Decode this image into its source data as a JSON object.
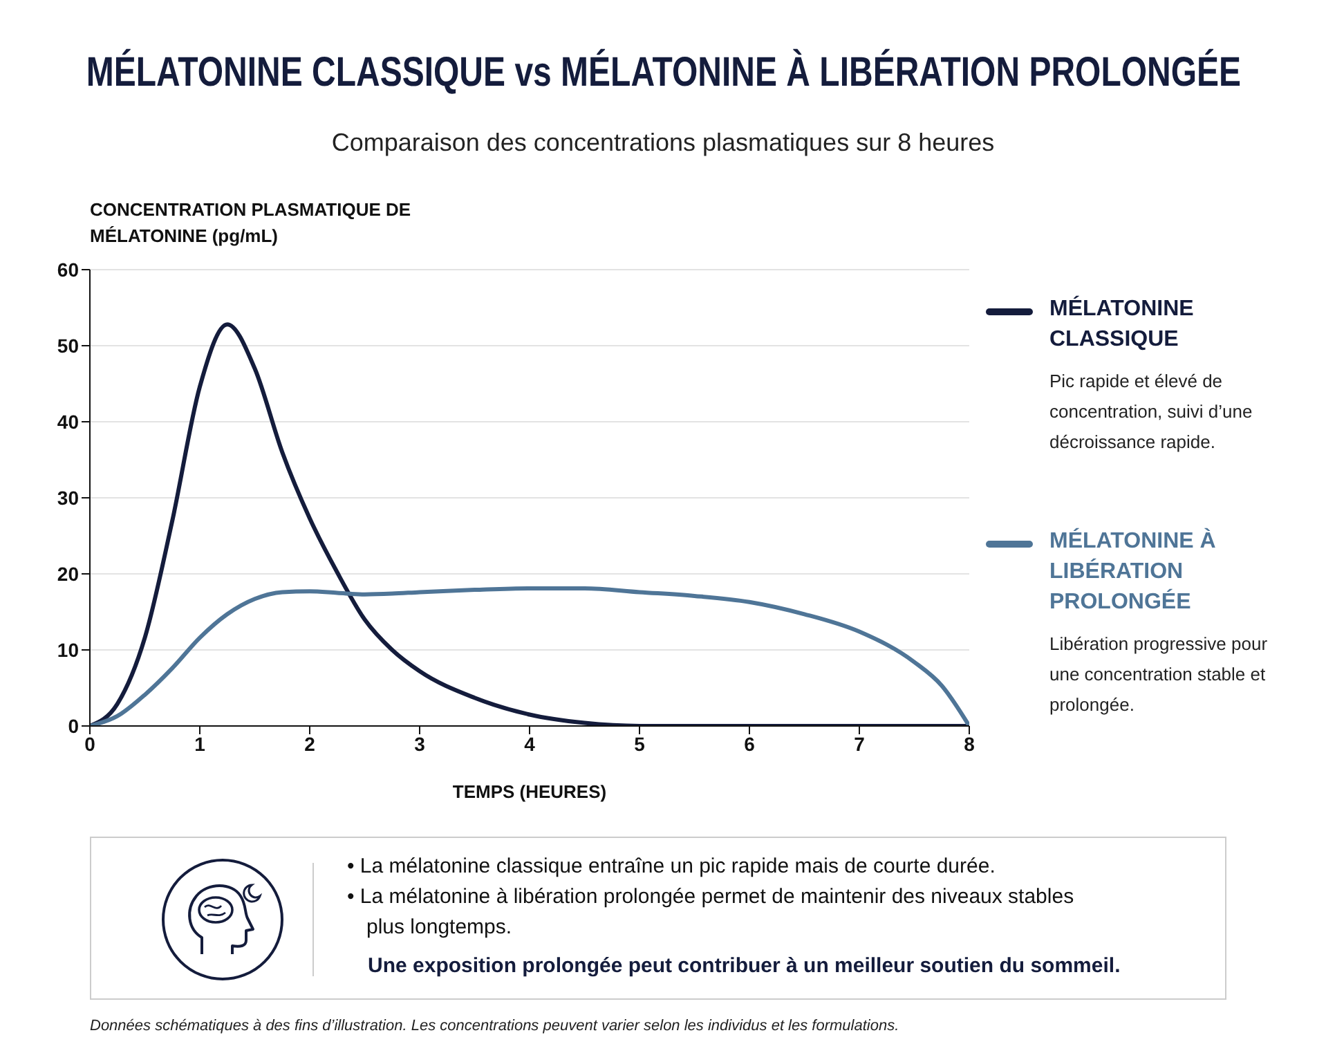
{
  "chart_data": {
    "type": "line",
    "title": "MÉLATONINE CLASSIQUE vs MÉLATONINE À LIBÉRATION PROLONGÉE",
    "subtitle": "Comparaison des concentrations plasmatiques sur 8 heures",
    "xlabel": "TEMPS (HEURES)",
    "ylabel": "CONCENTRATION PLASMATIQUE DE MÉLATONINE (pg/mL)",
    "x": [
      0,
      0.25,
      0.5,
      0.75,
      1,
      1.25,
      1.5,
      1.75,
      2,
      2.25,
      2.5,
      2.75,
      3,
      3.5,
      4,
      4.5,
      5,
      5.5,
      6,
      6.5,
      7,
      7.5,
      7.75,
      8
    ],
    "series": [
      {
        "name": "MÉLATONINE CLASSIQUE",
        "color": "#141c3c",
        "values": [
          0,
          2.9,
          11.6,
          27,
          44.6,
          52.8,
          47,
          36,
          27.3,
          20.2,
          14,
          10,
          7.2,
          3.7,
          1.5,
          0.4,
          0,
          0,
          0,
          0,
          0,
          0,
          0,
          0
        ]
      },
      {
        "name": "MÉLATONINE À LIBÉRATION PROLONGÉE",
        "color": "#4f7597",
        "values": [
          0,
          1.3,
          4.1,
          7.6,
          11.6,
          14.7,
          16.7,
          17.6,
          17.7,
          17.5,
          17.3,
          17.4,
          17.6,
          17.9,
          18.1,
          18.1,
          17.6,
          17.1,
          16.3,
          14.7,
          12.4,
          8.4,
          5.3,
          0
        ]
      }
    ],
    "xlim": [
      0,
      8
    ],
    "xticks": [
      0,
      1,
      2,
      3,
      4,
      5,
      6,
      7,
      8
    ],
    "ylim": [
      0,
      60
    ],
    "yticks": [
      0,
      10,
      20,
      30,
      40,
      50,
      60
    ],
    "grid": "y",
    "legend": "right",
    "marker": "none",
    "line_style": "solid",
    "annotations": [
      "Pic rapide et élevé de concentration, suivi d’une décroissance rapide.",
      "Libération progressive pour une concentration stable et prolongée.",
      "• La mélatonine classique entraîne un pic rapide mais de courte durée.",
      "• La mélatonine à libération prolongée permet de maintenir des niveaux stables plus longtemps.",
      "Une exposition prolongée peut contribuer à un meilleur soutien du sommeil.",
      "Données schématiques à des fins d’illustration. Les concentrations peuvent varier selon les individus et les formulations."
    ]
  }
}
